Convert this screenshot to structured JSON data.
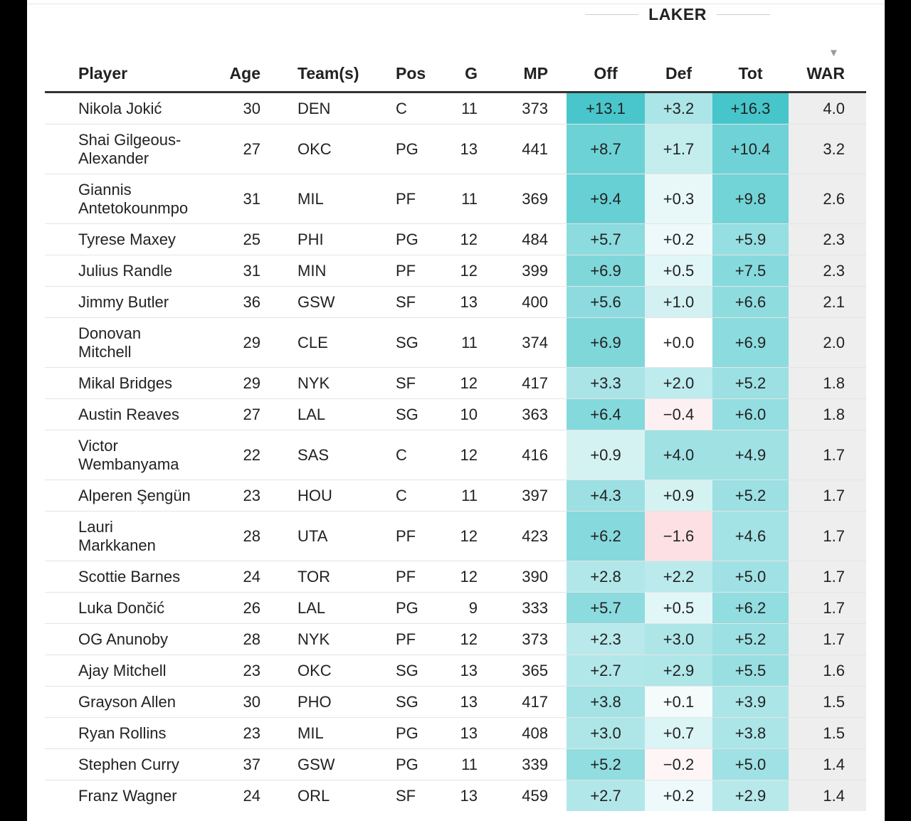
{
  "group_label": "LAKER",
  "sort_indicator": "▼",
  "columns": {
    "player": "Player",
    "age": "Age",
    "team": "Team(s)",
    "pos": "Pos",
    "g": "G",
    "mp": "MP",
    "off": "Off",
    "def": "Def",
    "tot": "Tot",
    "war": "WAR"
  },
  "rows": [
    {
      "player": "Nikola Jokić",
      "age": "30",
      "team": "DEN",
      "pos": "C",
      "g": "11",
      "mp": "373",
      "off": "+13.1",
      "def": "+3.2",
      "tot": "+16.3",
      "war": "4.0"
    },
    {
      "player": "Shai Gilgeous-Alexander",
      "age": "27",
      "team": "OKC",
      "pos": "PG",
      "g": "13",
      "mp": "441",
      "off": "+8.7",
      "def": "+1.7",
      "tot": "+10.4",
      "war": "3.2"
    },
    {
      "player": "Giannis Antetokounmpo",
      "age": "31",
      "team": "MIL",
      "pos": "PF",
      "g": "11",
      "mp": "369",
      "off": "+9.4",
      "def": "+0.3",
      "tot": "+9.8",
      "war": "2.6"
    },
    {
      "player": "Tyrese Maxey",
      "age": "25",
      "team": "PHI",
      "pos": "PG",
      "g": "12",
      "mp": "484",
      "off": "+5.7",
      "def": "+0.2",
      "tot": "+5.9",
      "war": "2.3"
    },
    {
      "player": "Julius Randle",
      "age": "31",
      "team": "MIN",
      "pos": "PF",
      "g": "12",
      "mp": "399",
      "off": "+6.9",
      "def": "+0.5",
      "tot": "+7.5",
      "war": "2.3"
    },
    {
      "player": "Jimmy Butler",
      "age": "36",
      "team": "GSW",
      "pos": "SF",
      "g": "13",
      "mp": "400",
      "off": "+5.6",
      "def": "+1.0",
      "tot": "+6.6",
      "war": "2.1"
    },
    {
      "player": "Donovan Mitchell",
      "age": "29",
      "team": "CLE",
      "pos": "SG",
      "g": "11",
      "mp": "374",
      "off": "+6.9",
      "def": "+0.0",
      "tot": "+6.9",
      "war": "2.0"
    },
    {
      "player": "Mikal Bridges",
      "age": "29",
      "team": "NYK",
      "pos": "SF",
      "g": "12",
      "mp": "417",
      "off": "+3.3",
      "def": "+2.0",
      "tot": "+5.2",
      "war": "1.8"
    },
    {
      "player": "Austin Reaves",
      "age": "27",
      "team": "LAL",
      "pos": "SG",
      "g": "10",
      "mp": "363",
      "off": "+6.4",
      "def": "−0.4",
      "tot": "+6.0",
      "war": "1.8"
    },
    {
      "player": "Victor Wembanyama",
      "age": "22",
      "team": "SAS",
      "pos": "C",
      "g": "12",
      "mp": "416",
      "off": "+0.9",
      "def": "+4.0",
      "tot": "+4.9",
      "war": "1.7"
    },
    {
      "player": "Alperen Şengün",
      "age": "23",
      "team": "HOU",
      "pos": "C",
      "g": "11",
      "mp": "397",
      "off": "+4.3",
      "def": "+0.9",
      "tot": "+5.2",
      "war": "1.7"
    },
    {
      "player": "Lauri Markkanen",
      "age": "28",
      "team": "UTA",
      "pos": "PF",
      "g": "12",
      "mp": "423",
      "off": "+6.2",
      "def": "−1.6",
      "tot": "+4.6",
      "war": "1.7"
    },
    {
      "player": "Scottie Barnes",
      "age": "24",
      "team": "TOR",
      "pos": "PF",
      "g": "12",
      "mp": "390",
      "off": "+2.8",
      "def": "+2.2",
      "tot": "+5.0",
      "war": "1.7"
    },
    {
      "player": "Luka Dončić",
      "age": "26",
      "team": "LAL",
      "pos": "PG",
      "g": "9",
      "mp": "333",
      "off": "+5.7",
      "def": "+0.5",
      "tot": "+6.2",
      "war": "1.7"
    },
    {
      "player": "OG Anunoby",
      "age": "28",
      "team": "NYK",
      "pos": "PF",
      "g": "12",
      "mp": "373",
      "off": "+2.3",
      "def": "+3.0",
      "tot": "+5.2",
      "war": "1.7"
    },
    {
      "player": "Ajay Mitchell",
      "age": "23",
      "team": "OKC",
      "pos": "SG",
      "g": "13",
      "mp": "365",
      "off": "+2.7",
      "def": "+2.9",
      "tot": "+5.5",
      "war": "1.6"
    },
    {
      "player": "Grayson Allen",
      "age": "30",
      "team": "PHO",
      "pos": "SG",
      "g": "13",
      "mp": "417",
      "off": "+3.8",
      "def": "+0.1",
      "tot": "+3.9",
      "war": "1.5"
    },
    {
      "player": "Ryan Rollins",
      "age": "23",
      "team": "MIL",
      "pos": "PG",
      "g": "13",
      "mp": "408",
      "off": "+3.0",
      "def": "+0.7",
      "tot": "+3.8",
      "war": "1.5"
    },
    {
      "player": "Stephen Curry",
      "age": "37",
      "team": "GSW",
      "pos": "PG",
      "g": "11",
      "mp": "339",
      "off": "+5.2",
      "def": "−0.2",
      "tot": "+5.0",
      "war": "1.4"
    },
    {
      "player": "Franz Wagner",
      "age": "24",
      "team": "ORL",
      "pos": "SF",
      "g": "13",
      "mp": "459",
      "off": "+2.7",
      "def": "+0.2",
      "tot": "+2.9",
      "war": "1.4"
    }
  ],
  "heat_colors": {
    "positive": "#3ec3c8",
    "negative": "#f28a96",
    "base": "#ffffff"
  }
}
